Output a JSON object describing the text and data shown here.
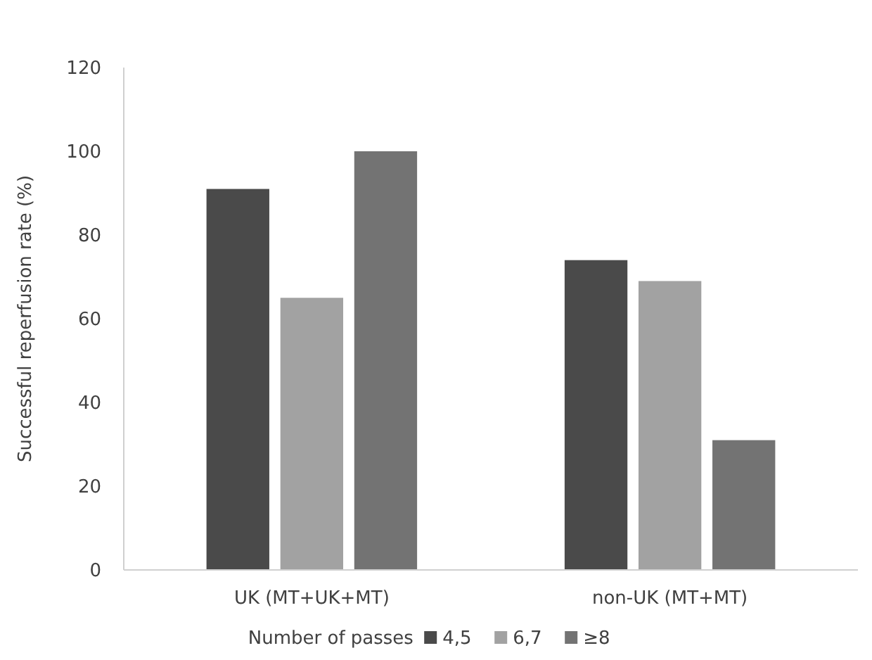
{
  "chart_data": {
    "type": "bar",
    "ylabel": "Successful reperfusion rate (%)",
    "legend_title": "Number of passes",
    "categories": [
      "UK (MT+UK+MT)",
      "non-UK (MT+MT)"
    ],
    "series": [
      {
        "name": "4,5",
        "color": "#4a4a4a",
        "values": [
          91,
          74
        ]
      },
      {
        "name": "6,7",
        "color": "#a2a2a2",
        "values": [
          65,
          69
        ]
      },
      {
        "name": "≥8",
        "color": "#737373",
        "values": [
          100,
          31
        ]
      }
    ],
    "ylim": [
      0,
      120
    ],
    "yticks": [
      0,
      20,
      40,
      60,
      80,
      100,
      120
    ],
    "grid": false,
    "legend": "bottom"
  }
}
